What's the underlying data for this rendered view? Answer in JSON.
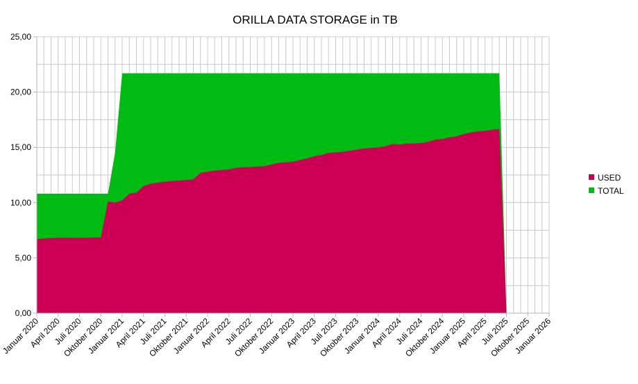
{
  "chart_data": {
    "type": "area",
    "title": "ORILLA DATA STORAGE in TB",
    "ylim": [
      0,
      25
    ],
    "yticks": [
      "0,00",
      "5,00",
      "10,00",
      "15,00",
      "20,00",
      "25,00"
    ],
    "ytick_values": [
      0,
      5,
      10,
      15,
      20,
      25
    ],
    "xticks": [
      "Januar 2020",
      "April 2020",
      "Juli 2020",
      "Oktober 2020",
      "Januar 2021",
      "April 2021",
      "Juli 2021",
      "Oktober 2021",
      "Januar 2022",
      "April 2022",
      "Juli 2022",
      "Oktober 2022",
      "Januar 2023",
      "April 2023",
      "Juli 2023",
      "Oktober 2023",
      "Januar 2024",
      "April 2024",
      "Juli 2024",
      "Oktober 2024",
      "Januar 2025",
      "April 2025",
      "Juli 2025",
      "Oktober 2025",
      "Januar 2026"
    ],
    "x_start": "2020-01",
    "x_end": "2026-01",
    "grid": true,
    "legend_position": "right",
    "colors": {
      "used": "#cc0055",
      "total": "#00bb11"
    },
    "series": [
      {
        "name": "USED",
        "points": [
          [
            "2020-01",
            6.7
          ],
          [
            "2020-02",
            6.75
          ],
          [
            "2020-03",
            6.8
          ],
          [
            "2020-04",
            6.82
          ],
          [
            "2020-05",
            6.83
          ],
          [
            "2020-06",
            6.83
          ],
          [
            "2020-07",
            6.82
          ],
          [
            "2020-08",
            6.83
          ],
          [
            "2020-09",
            6.85
          ],
          [
            "2020-10",
            6.85
          ],
          [
            "2020-11",
            10.1
          ],
          [
            "2020-12",
            10.0
          ],
          [
            "2021-01",
            10.2
          ],
          [
            "2021-02",
            10.8
          ],
          [
            "2021-03",
            10.9
          ],
          [
            "2021-04",
            11.5
          ],
          [
            "2021-05",
            11.7
          ],
          [
            "2021-06",
            11.8
          ],
          [
            "2021-07",
            11.9
          ],
          [
            "2021-08",
            11.95
          ],
          [
            "2021-09",
            12.0
          ],
          [
            "2021-10",
            12.05
          ],
          [
            "2021-11",
            12.1
          ],
          [
            "2021-12",
            12.7
          ],
          [
            "2022-01",
            12.8
          ],
          [
            "2022-02",
            12.9
          ],
          [
            "2022-03",
            12.95
          ],
          [
            "2022-04",
            13.0
          ],
          [
            "2022-05",
            13.15
          ],
          [
            "2022-06",
            13.2
          ],
          [
            "2022-07",
            13.22
          ],
          [
            "2022-08",
            13.25
          ],
          [
            "2022-09",
            13.3
          ],
          [
            "2022-10",
            13.45
          ],
          [
            "2022-11",
            13.6
          ],
          [
            "2022-12",
            13.65
          ],
          [
            "2023-01",
            13.7
          ],
          [
            "2023-02",
            13.85
          ],
          [
            "2023-03",
            14.0
          ],
          [
            "2023-04",
            14.2
          ],
          [
            "2023-05",
            14.3
          ],
          [
            "2023-06",
            14.5
          ],
          [
            "2023-07",
            14.55
          ],
          [
            "2023-08",
            14.6
          ],
          [
            "2023-09",
            14.7
          ],
          [
            "2023-10",
            14.8
          ],
          [
            "2023-11",
            14.9
          ],
          [
            "2023-12",
            14.95
          ],
          [
            "2024-01",
            15.0
          ],
          [
            "2024-02",
            15.1
          ],
          [
            "2024-03",
            15.3
          ],
          [
            "2024-04",
            15.25
          ],
          [
            "2024-05",
            15.35
          ],
          [
            "2024-06",
            15.35
          ],
          [
            "2024-07",
            15.4
          ],
          [
            "2024-08",
            15.5
          ],
          [
            "2024-09",
            15.7
          ],
          [
            "2024-10",
            15.75
          ],
          [
            "2024-11",
            15.9
          ],
          [
            "2024-12",
            16.0
          ],
          [
            "2025-01",
            16.2
          ],
          [
            "2025-02",
            16.35
          ],
          [
            "2025-03",
            16.45
          ],
          [
            "2025-04",
            16.5
          ],
          [
            "2025-05",
            16.6
          ],
          [
            "2025-06",
            16.65
          ],
          [
            "2025-07",
            0
          ]
        ]
      },
      {
        "name": "TOTAL",
        "points": [
          [
            "2020-01",
            10.8
          ],
          [
            "2020-10",
            10.8
          ],
          [
            "2020-11",
            10.8
          ],
          [
            "2020-12",
            14.5
          ],
          [
            "2021-01",
            21.7
          ],
          [
            "2025-06",
            21.7
          ],
          [
            "2025-07",
            0
          ]
        ]
      }
    ]
  }
}
